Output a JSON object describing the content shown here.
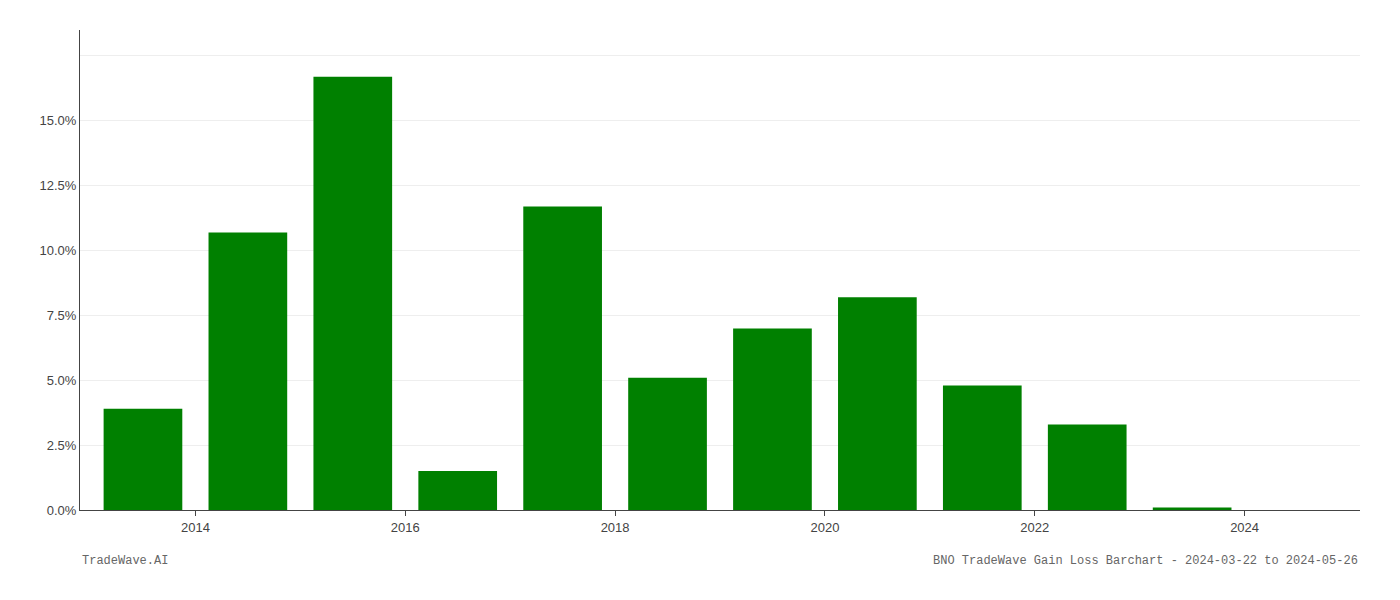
{
  "chart_data": {
    "type": "bar",
    "x": [
      2013,
      2014,
      2015,
      2016,
      2017,
      2018,
      2019,
      2020,
      2021,
      2022,
      2023
    ],
    "values": [
      0.039,
      0.107,
      0.167,
      0.015,
      0.117,
      0.051,
      0.07,
      0.082,
      0.048,
      0.033,
      0.001
    ],
    "color": "#008000",
    "xlim": [
      2012.4,
      2024.6
    ],
    "xticks": [
      {
        "value": 2013.5,
        "label": "2014"
      },
      {
        "value": 2015.5,
        "label": "2016"
      },
      {
        "value": 2017.5,
        "label": "2018"
      },
      {
        "value": 2019.5,
        "label": "2020"
      },
      {
        "value": 2021.5,
        "label": "2022"
      },
      {
        "value": 2023.5,
        "label": "2024"
      }
    ],
    "ylim": [
      0,
      0.185
    ],
    "yticks": [
      {
        "value": 0.0,
        "label": "0.0%"
      },
      {
        "value": 0.025,
        "label": "2.5%"
      },
      {
        "value": 0.05,
        "label": "5.0%"
      },
      {
        "value": 0.075,
        "label": "7.5%"
      },
      {
        "value": 0.1,
        "label": "10.0%"
      },
      {
        "value": 0.125,
        "label": "12.5%"
      },
      {
        "value": 0.15,
        "label": "15.0%"
      },
      {
        "value": 0.175,
        "label": null
      }
    ],
    "grid": "y",
    "annotations": [
      "TradeWave.AI",
      "BNO TradeWave Gain Loss Barchart - 2024-03-22 to 2024-05-26"
    ]
  }
}
